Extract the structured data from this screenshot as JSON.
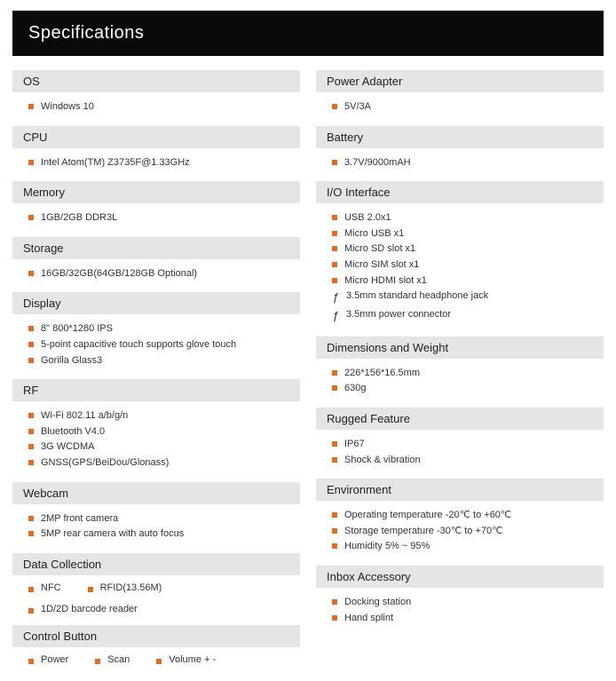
{
  "title": "Specifications",
  "colors": {
    "title_bg": "#0a0a0a",
    "title_fg": "#ffffff",
    "section_bg": "#e5e5e5",
    "bullet": "#e86a1e",
    "text": "#333333"
  },
  "left": [
    {
      "header": "OS",
      "items": [
        {
          "text": "Windows 10"
        }
      ]
    },
    {
      "header": "CPU",
      "items": [
        {
          "text": "Intel Atom(TM) Z3735F@1.33GHz"
        }
      ]
    },
    {
      "header": "Memory",
      "items": [
        {
          "text": "1GB/2GB DDR3L"
        }
      ]
    },
    {
      "header": "Storage",
      "items": [
        {
          "text": "16GB/32GB(64GB/128GB Optional)"
        }
      ]
    },
    {
      "header": "Display",
      "items": [
        {
          "text": "8\" 800*1280 IPS"
        },
        {
          "text": "5-point capacitive touch supports glove touch"
        },
        {
          "text": "Gorilla Glass3"
        }
      ]
    },
    {
      "header": "RF",
      "items": [
        {
          "text": "Wi-Fi 802.11 a/b/g/n"
        },
        {
          "text": "Bluetooth V4.0"
        },
        {
          "text": "3G WCDMA"
        },
        {
          "text": "GNSS(GPS/BeiDou/Glonass)"
        }
      ]
    },
    {
      "header": "Webcam",
      "items": [
        {
          "text": "2MP front camera"
        },
        {
          "text": "5MP rear camera with auto focus"
        }
      ]
    },
    {
      "header": "Data Collection",
      "inline": true,
      "rows": [
        [
          {
            "text": "NFC"
          },
          {
            "text": "RFID(13.56M)"
          }
        ],
        [
          {
            "text": "1D/2D barcode reader"
          }
        ]
      ]
    },
    {
      "header": "Control Button",
      "inline": true,
      "rows": [
        [
          {
            "text": "Power"
          },
          {
            "text": "Scan"
          },
          {
            "text": "Volume + -"
          }
        ]
      ]
    }
  ],
  "right": [
    {
      "header": "Power Adapter",
      "items": [
        {
          "text": "5V/3A"
        }
      ]
    },
    {
      "header": "Battery",
      "items": [
        {
          "text": "3.7V/9000mAH"
        }
      ]
    },
    {
      "header": "I/O Interface",
      "items": [
        {
          "text": "USB 2.0x1"
        },
        {
          "text": "Micro USB x1"
        },
        {
          "text": "Micro SD slot x1"
        },
        {
          "text": "Micro SIM slot x1"
        },
        {
          "text": "Micro HDMI slot x1"
        },
        {
          "text": "3.5mm standard headphone jack",
          "bulletStyle": "curly"
        },
        {
          "text": "3.5mm power connector",
          "bulletStyle": "curly"
        }
      ]
    },
    {
      "header": "Dimensions and Weight",
      "items": [
        {
          "text": "226*156*16.5mm"
        },
        {
          "text": "630g"
        }
      ]
    },
    {
      "header": "Rugged Feature",
      "items": [
        {
          "text": "IP67"
        },
        {
          "text": "Shock & vibration"
        }
      ]
    },
    {
      "header": "Environment",
      "items": [
        {
          "text": "Operating temperature -20℃ to +60℃"
        },
        {
          "text": "Storage temperature -30℃ to +70℃"
        },
        {
          "text": "Humidity 5% ~ 95%"
        }
      ]
    },
    {
      "header": "Inbox Accessory",
      "items": [
        {
          "text": "Docking station"
        },
        {
          "text": "Hand splint"
        }
      ]
    }
  ]
}
